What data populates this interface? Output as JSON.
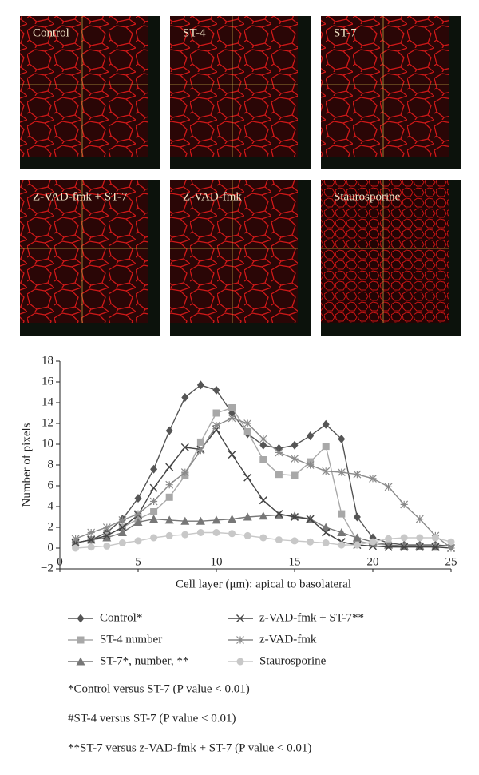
{
  "panels": [
    "Control",
    "ST-4",
    "ST-7",
    "Z-VAD-fmk + ST-7",
    "Z-VAD-fmk",
    "Staurosporine"
  ],
  "chart_data": {
    "type": "line",
    "xlabel": "Cell layer (μm): apical to basolateral",
    "ylabel": "Number of pixels",
    "x": [
      1,
      2,
      3,
      4,
      5,
      6,
      7,
      8,
      9,
      10,
      11,
      12,
      13,
      14,
      15,
      16,
      17,
      18,
      19,
      20,
      21,
      22,
      23,
      24,
      25
    ],
    "xlim": [
      0,
      25
    ],
    "xticks": [
      0,
      5,
      10,
      15,
      20,
      25
    ],
    "ylim": [
      -2,
      18
    ],
    "yticks": [
      {
        "value": -2,
        "label": "−2"
      },
      0,
      2,
      4,
      6,
      8,
      10,
      12,
      14,
      16,
      18
    ],
    "series": [
      {
        "name": "Control*",
        "color": "#555555",
        "marker": "diamond",
        "values": [
          0.5,
          0.8,
          1.5,
          2.8,
          4.8,
          7.6,
          11.3,
          14.5,
          15.7,
          15.2,
          13,
          11,
          9.9,
          9.6,
          9.9,
          10.8,
          11.9,
          10.5,
          3,
          1,
          0.5,
          0.3,
          0.3,
          0.3,
          0.2
        ]
      },
      {
        "name": "ST-4 number",
        "color": "#a8a8a8",
        "marker": "square",
        "values": [
          0.5,
          0.8,
          1.2,
          2.0,
          2.8,
          3.5,
          4.9,
          7.0,
          10.2,
          13.0,
          13.5,
          11.2,
          8.5,
          7.1,
          7.0,
          8.3,
          9.8,
          3.3,
          0.7,
          0.4,
          0.3,
          0.2,
          0.2,
          0.2,
          null
        ]
      },
      {
        "name": "ST-7*, number, **",
        "color": "#777777",
        "marker": "triangle",
        "values": [
          0.5,
          0.8,
          1.0,
          1.5,
          2.5,
          2.8,
          2.7,
          2.6,
          2.6,
          2.7,
          2.8,
          3.0,
          3.1,
          3.2,
          3.1,
          2.8,
          2.0,
          1.5,
          1.0,
          0.6,
          0.3,
          0.2,
          0.2,
          0.1,
          null
        ]
      },
      {
        "name": "z-VAD-fmk + ST-7**",
        "color": "#444444",
        "marker": "x",
        "values": [
          0.5,
          0.8,
          1.2,
          2.0,
          3.2,
          5.8,
          7.8,
          9.7,
          9.5,
          11.4,
          9.0,
          6.8,
          4.6,
          3.3,
          3.0,
          2.8,
          1.5,
          0.6,
          0.3,
          0.2,
          0.1,
          0.1,
          0.1,
          0.1,
          0.0
        ]
      },
      {
        "name": "z-VAD-fmk",
        "color": "#8a8a8a",
        "marker": "asterisk",
        "values": [
          0.9,
          1.5,
          2.0,
          2.7,
          3.3,
          4.5,
          6.1,
          7.3,
          9.4,
          11.8,
          12.5,
          12.0,
          10.5,
          9.2,
          8.6,
          8.0,
          7.4,
          7.3,
          7.1,
          6.7,
          5.9,
          4.2,
          2.8,
          1.2,
          0.0
        ]
      },
      {
        "name": "Staurosporine",
        "color": "#c8c8c8",
        "marker": "circle",
        "values": [
          0.0,
          0.1,
          0.2,
          0.5,
          0.7,
          1.0,
          1.2,
          1.3,
          1.5,
          1.5,
          1.4,
          1.2,
          1.0,
          0.8,
          0.7,
          0.6,
          0.5,
          0.3,
          0.3,
          0.6,
          0.9,
          1.0,
          1.0,
          1.0,
          0.6
        ]
      }
    ],
    "notes": [
      "*Control versus ST-7 (P value < 0.01)",
      "#ST-4 versus ST-7 (P value < 0.01)",
      "**ST-7 versus z-VAD-fmk + ST-7 (P value < 0.01)"
    ]
  }
}
